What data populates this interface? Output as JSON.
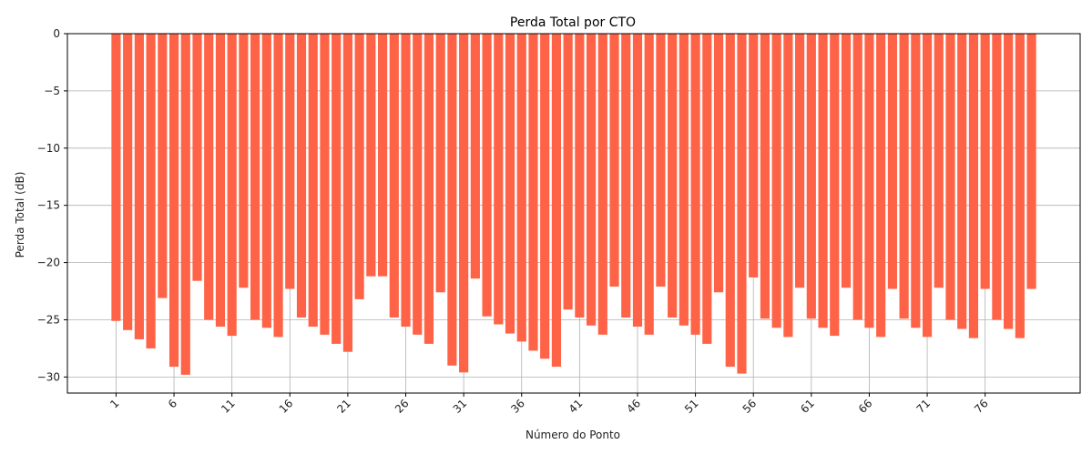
{
  "chart_data": {
    "type": "bar",
    "title": "Perda Total por CTO",
    "xlabel": "Número do Ponto",
    "ylabel": "Perda Total (dB)",
    "x": [
      1,
      2,
      3,
      4,
      5,
      6,
      7,
      8,
      9,
      10,
      11,
      12,
      13,
      14,
      15,
      16,
      17,
      18,
      19,
      20,
      21,
      22,
      23,
      24,
      25,
      26,
      27,
      28,
      29,
      30,
      31,
      32,
      33,
      34,
      35,
      36,
      37,
      38,
      39,
      40,
      41,
      42,
      43,
      44,
      45,
      46,
      47,
      48,
      49,
      50,
      51,
      52,
      53,
      54,
      55,
      56,
      57,
      58,
      59,
      60,
      61,
      62,
      63,
      64,
      65,
      66,
      67,
      68,
      69,
      70,
      71,
      72,
      73,
      74,
      75,
      76,
      77,
      78,
      79,
      80
    ],
    "values": [
      -25.1,
      -25.9,
      -26.7,
      -27.5,
      -23.1,
      -29.1,
      -29.8,
      -21.6,
      -25.0,
      -25.6,
      -26.4,
      -22.2,
      -25.0,
      -25.7,
      -26.5,
      -22.3,
      -24.8,
      -25.6,
      -26.3,
      -27.1,
      -27.8,
      -23.2,
      -21.2,
      -21.2,
      -24.8,
      -25.6,
      -26.3,
      -27.1,
      -22.6,
      -29.0,
      -29.6,
      -21.4,
      -24.7,
      -25.4,
      -26.2,
      -26.9,
      -27.7,
      -28.4,
      -29.1,
      -24.1,
      -24.8,
      -25.5,
      -26.3,
      -22.1,
      -24.8,
      -25.6,
      -26.3,
      -22.1,
      -24.8,
      -25.5,
      -26.3,
      -27.1,
      -22.6,
      -29.1,
      -29.7,
      -21.3,
      -24.9,
      -25.7,
      -26.5,
      -22.2,
      -24.9,
      -25.7,
      -26.4,
      -22.2,
      -25.0,
      -25.7,
      -26.5,
      -22.3,
      -24.9,
      -25.7,
      -26.5,
      -22.2,
      -25.0,
      -25.8,
      -26.6,
      -22.3,
      -25.0,
      -25.8,
      -26.6,
      -22.3
    ],
    "xticks": [
      1,
      6,
      11,
      16,
      21,
      26,
      31,
      36,
      41,
      46,
      51,
      56,
      61,
      66,
      71,
      76
    ],
    "yticks": [
      0,
      -5,
      -10,
      -15,
      -20,
      -25,
      -30
    ],
    "ylim": [
      -31.4,
      0
    ],
    "xlim": [
      -3.2,
      84.2
    ],
    "grid": true,
    "bar_color": "#ff6347",
    "grid_color": "#b0b0b0"
  }
}
